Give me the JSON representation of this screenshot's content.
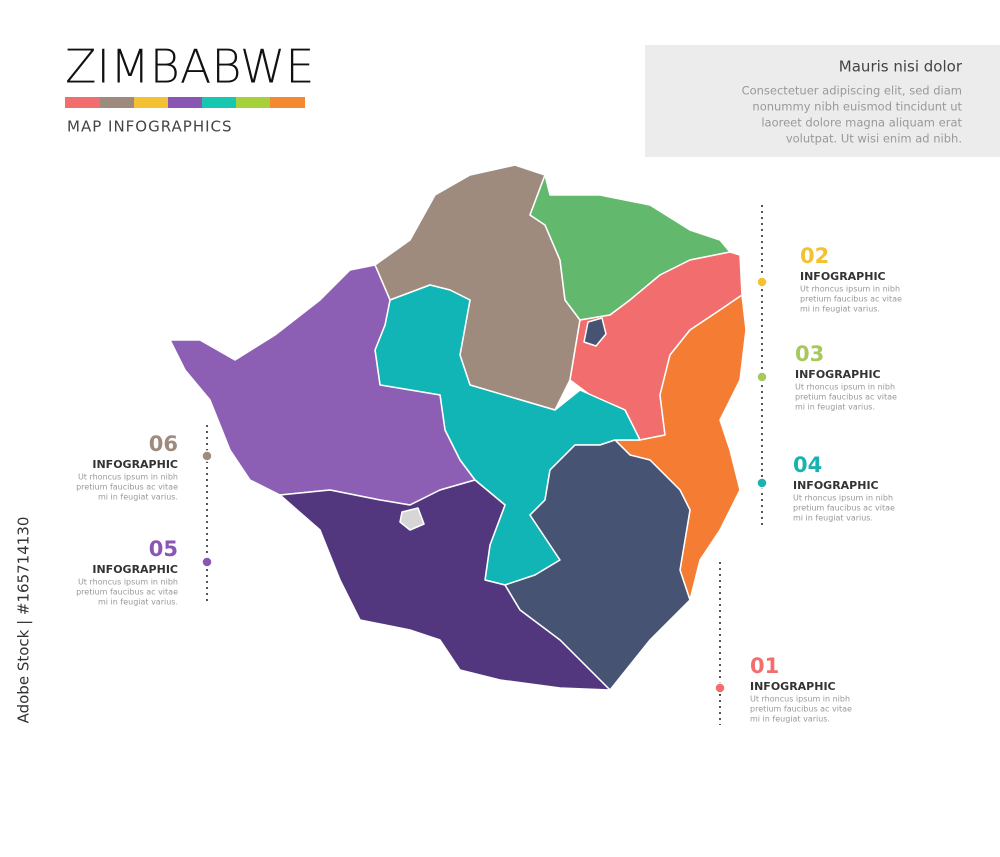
{
  "header": {
    "title": "ZIMBABWE",
    "subtitle": "MAP INFOGRAPHICS"
  },
  "text_box": {
    "title": "Mauris nisi dolor",
    "lines": [
      "Consectetuer adipiscing elit, sed diam",
      "nonummy nibh euismod tincidunt ut",
      "laoreet dolore magna aliquam erat",
      "volutpat. Ut wisi enim ad nibh."
    ]
  },
  "callouts": [
    {
      "number": "02",
      "label": "INFOGRAPHIC",
      "color": "#f3c131",
      "lines": [
        "Ut rhoncus ipsum in nibh",
        "pretium faucibus ac vitae",
        "mi in feugiat varius."
      ]
    },
    {
      "number": "03",
      "label": "INFOGRAPHIC",
      "color": "#a6c85c",
      "lines": [
        "Ut rhoncus ipsum in nibh",
        "pretium faucibus ac vitae",
        "mi in feugiat varius."
      ]
    },
    {
      "number": "04",
      "label": "INFOGRAPHIC",
      "color": "#18b2b0",
      "lines": [
        "Ut rhoncus ipsum in nibh",
        "pretium faucibus ac vitae",
        "mi in feugiat varius."
      ]
    },
    {
      "number": "01",
      "label": "INFOGRAPHIC",
      "color": "#f26d6d",
      "lines": [
        "Ut rhoncus ipsum in nibh",
        "pretium faucibus ac vitae",
        "mi in feugiat varius."
      ]
    },
    {
      "number": "06",
      "label": "INFOGRAPHIC",
      "color": "#9e8b7e",
      "lines": [
        "Ut rhoncus ipsum in nibh",
        "pretium faucibus ac vitae",
        "mi in feugiat varius."
      ]
    },
    {
      "number": "05",
      "label": "INFOGRAPHIC",
      "color": "#8a56b4",
      "lines": [
        "Ut rhoncus ipsum in nibh",
        "pretium faucibus ac vitae",
        "mi in feugiat varius."
      ]
    }
  ],
  "watermark": "Adobe Stock | #165714130"
}
